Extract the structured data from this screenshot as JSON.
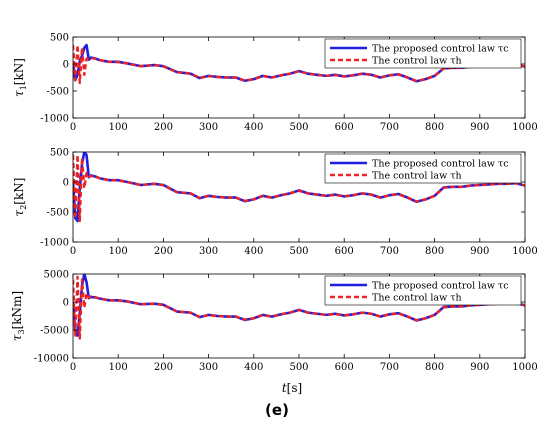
{
  "figure": {
    "panel_label": "(e)",
    "x_label_main": "t",
    "x_label_unit": "[s]",
    "legend": {
      "entry1": "The proposed control law τc",
      "entry2": "The control law τh"
    },
    "colors": {
      "proposed": "#1f1fe0",
      "baseline": "#ee2222"
    }
  },
  "chart_data": [
    {
      "type": "line",
      "ylabel_main": "τ1",
      "ylabel_unit": "[kN]",
      "xlim": [
        0,
        1000
      ],
      "ylim": [
        -1000,
        500
      ],
      "xticks": [
        0,
        100,
        200,
        300,
        400,
        500,
        600,
        700,
        800,
        900,
        1000
      ],
      "yticks": [
        -1000,
        -500,
        0,
        500
      ],
      "legend_position": "top-right",
      "grid": false,
      "x": [
        0,
        5,
        10,
        15,
        20,
        25,
        30,
        35,
        40,
        50,
        60,
        80,
        100,
        120,
        150,
        180,
        200,
        230,
        260,
        280,
        300,
        320,
        340,
        360,
        380,
        400,
        420,
        440,
        460,
        480,
        500,
        520,
        540,
        560,
        580,
        600,
        620,
        640,
        660,
        680,
        700,
        720,
        740,
        760,
        780,
        800,
        810,
        820,
        840,
        860,
        880,
        900,
        920,
        940,
        960,
        980,
        1000
      ],
      "series": [
        {
          "name": "The proposed control law τc",
          "values": [
            0,
            -300,
            -200,
            50,
            150,
            300,
            350,
            80,
            120,
            100,
            70,
            40,
            40,
            10,
            -40,
            -20,
            -40,
            -150,
            -180,
            -260,
            -220,
            -240,
            -250,
            -250,
            -310,
            -280,
            -220,
            -250,
            -210,
            -180,
            -130,
            -180,
            -200,
            -220,
            -200,
            -230,
            -210,
            -180,
            -200,
            -250,
            -210,
            -190,
            -250,
            -320,
            -280,
            -220,
            -150,
            -80,
            -70,
            -70,
            -50,
            -40,
            -30,
            -20,
            -20,
            -10,
            -50
          ]
        },
        {
          "name": "The control law τh",
          "values": [
            350,
            -300,
            350,
            -350,
            300,
            -200,
            100,
            90,
            110,
            95,
            70,
            40,
            35,
            10,
            -40,
            -20,
            -45,
            -150,
            -180,
            -255,
            -225,
            -240,
            -250,
            -250,
            -305,
            -280,
            -225,
            -250,
            -210,
            -180,
            -135,
            -180,
            -200,
            -220,
            -205,
            -230,
            -210,
            -180,
            -200,
            -250,
            -210,
            -195,
            -250,
            -315,
            -280,
            -220,
            -155,
            -85,
            -70,
            -70,
            -50,
            -40,
            -30,
            -20,
            -20,
            -10,
            -50
          ]
        }
      ]
    },
    {
      "type": "line",
      "ylabel_main": "τ2",
      "ylabel_unit": "[kN]",
      "xlim": [
        0,
        1000
      ],
      "ylim": [
        -1000,
        500
      ],
      "xticks": [
        0,
        100,
        200,
        300,
        400,
        500,
        600,
        700,
        800,
        900,
        1000
      ],
      "yticks": [
        -1000,
        -500,
        0,
        500
      ],
      "legend_position": "top-right",
      "grid": false,
      "x": [
        0,
        5,
        10,
        15,
        20,
        25,
        30,
        35,
        40,
        50,
        60,
        80,
        100,
        120,
        150,
        180,
        200,
        230,
        260,
        280,
        300,
        320,
        340,
        360,
        380,
        400,
        420,
        440,
        460,
        480,
        500,
        520,
        540,
        560,
        580,
        600,
        620,
        640,
        660,
        680,
        700,
        720,
        740,
        760,
        780,
        800,
        810,
        820,
        840,
        860,
        880,
        900,
        920,
        940,
        960,
        980,
        1000
      ],
      "series": [
        {
          "name": "The proposed control law τc",
          "values": [
            0,
            -600,
            -650,
            -100,
            300,
            500,
            450,
            80,
            110,
            90,
            60,
            30,
            30,
            0,
            -50,
            -30,
            -50,
            -170,
            -190,
            -270,
            -230,
            -250,
            -260,
            -260,
            -320,
            -290,
            -230,
            -260,
            -220,
            -190,
            -140,
            -190,
            -210,
            -230,
            -210,
            -240,
            -220,
            -190,
            -210,
            -260,
            -220,
            -200,
            -260,
            -330,
            -290,
            -230,
            -160,
            -90,
            -80,
            -80,
            -60,
            -50,
            -40,
            -30,
            -30,
            -20,
            -60
          ]
        },
        {
          "name": "The control law τh",
          "values": [
            450,
            -600,
            450,
            -650,
            400,
            -100,
            150,
            90,
            100,
            85,
            60,
            30,
            25,
            0,
            -50,
            -30,
            -55,
            -170,
            -190,
            -265,
            -235,
            -250,
            -260,
            -260,
            -315,
            -290,
            -235,
            -260,
            -220,
            -190,
            -145,
            -190,
            -210,
            -230,
            -215,
            -240,
            -220,
            -190,
            -210,
            -260,
            -220,
            -205,
            -260,
            -325,
            -290,
            -230,
            -165,
            -95,
            -80,
            -80,
            -60,
            -50,
            -40,
            -30,
            -30,
            -20,
            -60
          ]
        }
      ]
    },
    {
      "type": "line",
      "ylabel_main": "τ3",
      "ylabel_unit": "[kNm]",
      "xlim": [
        0,
        1000
      ],
      "ylim": [
        -10000,
        5000
      ],
      "xticks": [
        0,
        100,
        200,
        300,
        400,
        500,
        600,
        700,
        800,
        900,
        1000
      ],
      "yticks": [
        -10000,
        -5000,
        0,
        5000
      ],
      "legend_position": "top-right",
      "grid": false,
      "x": [
        0,
        5,
        10,
        15,
        20,
        25,
        30,
        35,
        40,
        50,
        60,
        80,
        100,
        120,
        150,
        180,
        200,
        230,
        260,
        280,
        300,
        320,
        340,
        360,
        380,
        400,
        420,
        440,
        460,
        480,
        500,
        520,
        540,
        560,
        580,
        600,
        620,
        640,
        660,
        680,
        700,
        720,
        740,
        760,
        780,
        800,
        810,
        820,
        840,
        860,
        880,
        900,
        920,
        940,
        960,
        980,
        1000
      ],
      "series": [
        {
          "name": "The proposed control law τc",
          "values": [
            0,
            -5000,
            -6000,
            -2000,
            3000,
            5000,
            3500,
            700,
            900,
            800,
            600,
            300,
            300,
            100,
            -400,
            -300,
            -500,
            -1700,
            -1900,
            -2700,
            -2300,
            -2500,
            -2600,
            -2600,
            -3200,
            -2900,
            -2300,
            -2600,
            -2200,
            -1900,
            -1400,
            -1900,
            -2100,
            -2300,
            -2100,
            -2400,
            -2200,
            -1900,
            -2100,
            -2600,
            -2200,
            -2000,
            -2600,
            -3300,
            -2900,
            -2300,
            -1600,
            -900,
            -800,
            -800,
            -600,
            -500,
            -400,
            -300,
            -300,
            -200,
            -600
          ]
        },
        {
          "name": "The control law τh",
          "values": [
            4000,
            -6000,
            4500,
            -6500,
            4000,
            -1000,
            1500,
            800,
            1000,
            850,
            600,
            300,
            250,
            100,
            -400,
            -300,
            -550,
            -1700,
            -1900,
            -2650,
            -2350,
            -2500,
            -2600,
            -2600,
            -3150,
            -2900,
            -2350,
            -2600,
            -2200,
            -1900,
            -1450,
            -1900,
            -2100,
            -2300,
            -2150,
            -2400,
            -2200,
            -1900,
            -2100,
            -2600,
            -2200,
            -2050,
            -2600,
            -3250,
            -2900,
            -2300,
            -1650,
            -950,
            -800,
            -800,
            -600,
            -500,
            -400,
            -300,
            -300,
            -200,
            -600
          ]
        }
      ]
    }
  ]
}
